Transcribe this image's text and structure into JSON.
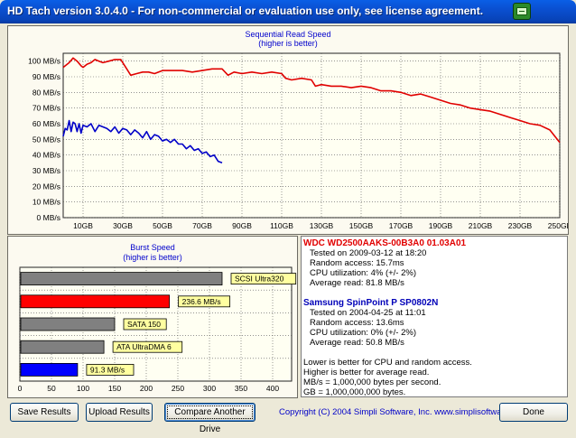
{
  "window": {
    "title": "HD Tach version 3.0.4.0  - For non-commercial or evaluation use only, see license agreement.",
    "icon": "hd-tach-app-icon"
  },
  "read_chart": {
    "title": "Sequential Read Speed",
    "subtitle": "(higher is better)"
  },
  "burst_chart": {
    "title": "Burst Speed",
    "subtitle": "(higher is better)"
  },
  "chart_data": [
    {
      "type": "line",
      "title": "Sequential Read Speed",
      "subtitle": "(higher is better)",
      "y_ticks": [
        "0 MB/s",
        "10 MB/s",
        "20 MB/s",
        "30 MB/s",
        "40 MB/s",
        "50 MB/s",
        "60 MB/s",
        "70 MB/s",
        "80 MB/s",
        "90 MB/s",
        "100 MB/s"
      ],
      "x_ticks": [
        "10GB",
        "30GB",
        "50GB",
        "70GB",
        "90GB",
        "110GB",
        "130GB",
        "150GB",
        "170GB",
        "190GB",
        "210GB",
        "230GB",
        "250GB"
      ],
      "ylim": [
        0,
        105
      ],
      "xlim": [
        0,
        250
      ],
      "grid": true,
      "series": [
        {
          "color": "#e00000",
          "x": [
            0,
            3,
            5,
            7,
            9,
            10,
            12,
            14,
            16,
            18,
            20,
            23,
            26,
            29,
            30,
            32,
            34,
            37,
            40,
            43,
            46,
            50,
            55,
            60,
            65,
            70,
            75,
            80,
            83,
            86,
            90,
            95,
            100,
            105,
            110,
            112,
            115,
            120,
            125,
            127,
            130,
            135,
            140,
            145,
            150,
            155,
            160,
            165,
            170,
            175,
            180,
            185,
            190,
            195,
            200,
            205,
            210,
            215,
            220,
            225,
            230,
            235,
            240,
            245,
            250
          ],
          "y": [
            96,
            99,
            102,
            100,
            97,
            96,
            98,
            99,
            101,
            100,
            99,
            100,
            101,
            101,
            99,
            95,
            91,
            92,
            93,
            93,
            92,
            94,
            94,
            94,
            93,
            94,
            95,
            95,
            91,
            93,
            92,
            93,
            92,
            93,
            92,
            89,
            88,
            89,
            88,
            84,
            85,
            84,
            84,
            83,
            84,
            83,
            81,
            81,
            80,
            78,
            79,
            77,
            75,
            73,
            72,
            70,
            69,
            68,
            66,
            64,
            62,
            60,
            59,
            56,
            48
          ]
        },
        {
          "color": "#0000c8",
          "x": [
            0,
            1,
            2,
            3,
            4,
            5,
            6,
            7,
            8,
            9,
            10,
            12,
            14,
            16,
            18,
            20,
            22,
            24,
            26,
            28,
            30,
            32,
            34,
            36,
            38,
            40,
            42,
            44,
            46,
            48,
            50,
            52,
            54,
            56,
            58,
            60,
            62,
            64,
            66,
            68,
            70,
            72,
            74,
            76,
            78,
            80
          ],
          "y": [
            52,
            57,
            56,
            62,
            55,
            61,
            60,
            55,
            60,
            54,
            59,
            58,
            60,
            55,
            59,
            58,
            57,
            55,
            58,
            54,
            57,
            56,
            53,
            56,
            54,
            51,
            55,
            50,
            53,
            52,
            49,
            50,
            48,
            50,
            47,
            47,
            44,
            46,
            43,
            44,
            41,
            42,
            39,
            40,
            36,
            35
          ]
        }
      ]
    },
    {
      "type": "bar",
      "title": "Burst Speed",
      "subtitle": "(higher is better)",
      "orientation": "horizontal",
      "x_ticks": [
        "0",
        "50",
        "100",
        "150",
        "200",
        "250",
        "300",
        "350",
        "400"
      ],
      "xlim": [
        0,
        430
      ],
      "grid": true,
      "bars": [
        {
          "label": "SCSI Ultra320",
          "value": 320,
          "color": "#808080"
        },
        {
          "label": "236.6 MB/s",
          "value": 236.6,
          "color": "#ff0000"
        },
        {
          "label": "SATA 150",
          "value": 150,
          "color": "#808080"
        },
        {
          "label": "ATA UltraDMA 6",
          "value": 133,
          "color": "#808080"
        },
        {
          "label": "91.3 MB/s",
          "value": 91.3,
          "color": "#0000ff"
        }
      ]
    }
  ],
  "info": {
    "drive1": {
      "name": "WDC WD2500AAKS-00B3A0 01.03A01",
      "tested": "Tested on 2009-03-12 at 18:20",
      "random_access": "Random access: 15.7ms",
      "cpu": "CPU utilization: 4% (+/- 2%)",
      "avg_read": "Average read: 81.8 MB/s"
    },
    "drive2": {
      "name": "Samsung SpinPoint P SP0802N",
      "tested": "Tested on 2004-04-25 at 11:01",
      "random_access": "Random access: 13.6ms",
      "cpu": "CPU utilization: 0% (+/- 2%)",
      "avg_read": "Average read: 50.8 MB/s"
    },
    "notes": [
      "Lower is better for CPU and random access.",
      "Higher is better for average read.",
      "MB/s = 1,000,000 bytes per second.",
      "GB = 1,000,000,000 bytes."
    ]
  },
  "buttons": {
    "save": "Save Results",
    "upload": "Upload Results",
    "compare": "Compare Another Drive",
    "done": "Done"
  },
  "footer": {
    "copyright": "Copyright (C) 2004 Simpli Software, Inc. www.simplisoftware.com"
  }
}
